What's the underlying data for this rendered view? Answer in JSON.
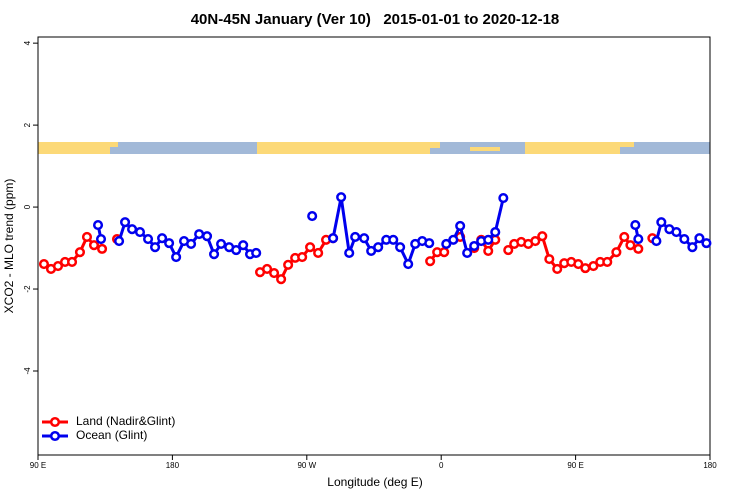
{
  "chart_data": {
    "type": "line",
    "title": "40N-45N January (Ver 10)   2015-01-01 to 2020-12-18",
    "xlabel": "Longitude (deg E)",
    "ylabel": "XCO2 - MLO trend (ppm)",
    "xlim": [
      90,
      540
    ],
    "ylim": [
      -6.05,
      4.15
    ],
    "xticks": [
      {
        "value": 90,
        "label": "90 E"
      },
      180,
      {
        "value": 270,
        "label": "90 W"
      },
      {
        "value": 360,
        "label": "0"
      },
      {
        "value": 450,
        "label": "90 E"
      },
      {
        "value": 540,
        "label": "180"
      }
    ],
    "yticks": [
      -4,
      -2,
      0,
      2,
      4
    ],
    "legend": "bottomleft",
    "series": [
      {
        "name": "Land (Nadir&Glint)",
        "color": "#ff0000",
        "x": [
          94.0,
          98.7,
          103.4,
          108.1,
          112.8,
          118.1,
          122.8,
          127.5,
          132.9,
          null,
          142.9,
          null,
          238.7,
          243.4,
          248.1,
          252.8,
          257.5,
          262.2,
          266.9,
          272.2,
          277.6,
          282.9,
          287.6,
          null,
          352.6,
          357.3,
          362.0,
          null,
          372.7,
          null,
          382.1,
          386.8,
          391.5,
          396.2,
          null,
          404.9,
          408.9,
          413.6,
          418.3,
          423.0,
          427.7,
          432.4,
          437.7,
          442.4,
          447.1,
          451.8,
          456.5,
          461.9,
          466.5,
          471.2,
          477.3,
          482.6,
          486.7,
          492.0,
          null,
          501.4
        ],
        "values": [
          -1.39,
          -1.51,
          -1.44,
          -1.34,
          -1.34,
          -1.1,
          -0.73,
          -0.93,
          -1.02,
          null,
          -0.78,
          null,
          -1.59,
          -1.51,
          -1.61,
          -1.76,
          -1.41,
          -1.24,
          -1.22,
          -0.98,
          -1.12,
          -0.8,
          -0.76,
          null,
          -1.32,
          -1.1,
          -1.1,
          null,
          -0.73,
          null,
          -1.0,
          -0.8,
          -1.07,
          -0.8,
          null,
          -1.05,
          -0.9,
          -0.85,
          -0.9,
          -0.83,
          -0.71,
          -1.27,
          -1.51,
          -1.37,
          -1.34,
          -1.39,
          -1.49,
          -1.44,
          -1.34,
          -1.34,
          -1.1,
          -0.73,
          -0.93,
          -1.02,
          null,
          -0.76
        ]
      },
      {
        "name": "Ocean (Glint)",
        "color": "#0000ee",
        "x": [
          130.2,
          132.2,
          null,
          144.3,
          148.3,
          153.0,
          158.3,
          163.7,
          168.4,
          173.1,
          177.8,
          182.5,
          187.8,
          192.5,
          197.9,
          203.2,
          207.9,
          212.6,
          218.0,
          222.7,
          227.4,
          232.0,
          236.1,
          null,
          273.6,
          null,
          287.6,
          293.0,
          298.4,
          302.4,
          308.4,
          313.1,
          317.8,
          323.2,
          327.9,
          332.5,
          337.9,
          342.6,
          347.3,
          352.0,
          null,
          363.4,
          368.1,
          372.7,
          377.4,
          382.1,
          386.8,
          391.5,
          396.2,
          401.6,
          null,
          490.0,
          492.0,
          null,
          504.1,
          507.4,
          512.8,
          517.5,
          522.8,
          528.2,
          532.9,
          537.6
        ],
        "values": [
          -0.44,
          -0.78,
          null,
          -0.83,
          -0.37,
          -0.54,
          -0.61,
          -0.78,
          -0.98,
          -0.76,
          -0.88,
          -1.22,
          -0.83,
          -0.9,
          -0.66,
          -0.71,
          -1.15,
          -0.9,
          -0.98,
          -1.05,
          -0.93,
          -1.15,
          -1.12,
          null,
          -0.22,
          null,
          -0.76,
          0.24,
          -1.12,
          -0.73,
          -0.76,
          -1.07,
          -0.98,
          -0.8,
          -0.8,
          -0.98,
          -1.39,
          -0.9,
          -0.83,
          -0.88,
          null,
          -0.9,
          -0.8,
          -0.46,
          -1.12,
          -0.95,
          -0.83,
          -0.8,
          -0.61,
          0.22,
          null,
          -0.44,
          -0.78,
          null,
          -0.83,
          -0.37,
          -0.54,
          -0.61,
          -0.78,
          -0.98,
          -0.76,
          -0.88
        ]
      }
    ]
  }
}
